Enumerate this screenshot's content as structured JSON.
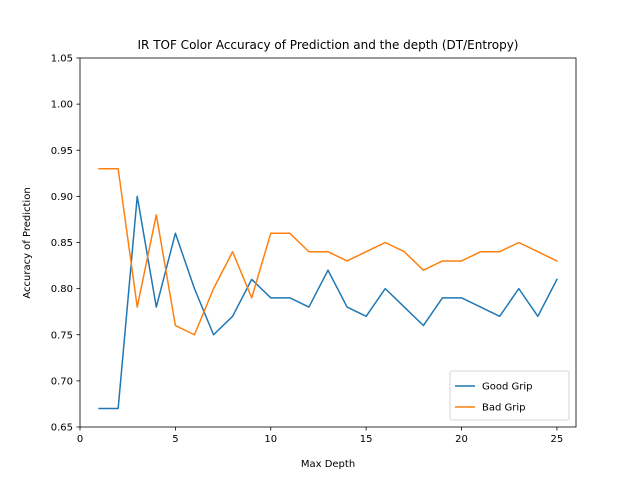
{
  "chart_data": {
    "type": "line",
    "title": "IR TOF Color Accuracy of Prediction and the depth (DT/Entropy)",
    "xlabel": "Max Depth",
    "ylabel": "Accuracy of Prediction",
    "xlim": [
      0,
      26
    ],
    "ylim": [
      0.65,
      1.05
    ],
    "xticks": [
      0,
      5,
      10,
      15,
      20,
      25
    ],
    "yticks": [
      0.65,
      0.7,
      0.75,
      0.8,
      0.85,
      0.9,
      0.95,
      1.0,
      1.05
    ],
    "xtick_labels": [
      "0",
      "5",
      "10",
      "15",
      "20",
      "25"
    ],
    "ytick_labels": [
      "0.65",
      "0.70",
      "0.75",
      "0.80",
      "0.85",
      "0.90",
      "0.95",
      "1.00",
      "1.05"
    ],
    "grid": false,
    "legend_position": "lower-right",
    "x": [
      1,
      2,
      3,
      4,
      5,
      6,
      7,
      8,
      9,
      10,
      11,
      12,
      13,
      14,
      15,
      16,
      17,
      18,
      19,
      20,
      21,
      22,
      23,
      24,
      25
    ],
    "series": [
      {
        "name": "Good Grip",
        "color": "#1f77b4",
        "values": [
          0.67,
          0.67,
          0.9,
          0.78,
          0.86,
          0.8,
          0.75,
          0.77,
          0.81,
          0.79,
          0.79,
          0.78,
          0.82,
          0.78,
          0.77,
          0.8,
          0.78,
          0.76,
          0.79,
          0.79,
          0.78,
          0.77,
          0.8,
          0.77,
          0.81
        ]
      },
      {
        "name": "Bad Grip",
        "color": "#ff7f0e",
        "values": [
          0.93,
          0.93,
          0.78,
          0.88,
          0.76,
          0.75,
          0.8,
          0.84,
          0.79,
          0.86,
          0.86,
          0.84,
          0.84,
          0.83,
          0.84,
          0.85,
          0.84,
          0.82,
          0.83,
          0.83,
          0.84,
          0.84,
          0.85,
          0.84,
          0.83
        ]
      }
    ]
  }
}
